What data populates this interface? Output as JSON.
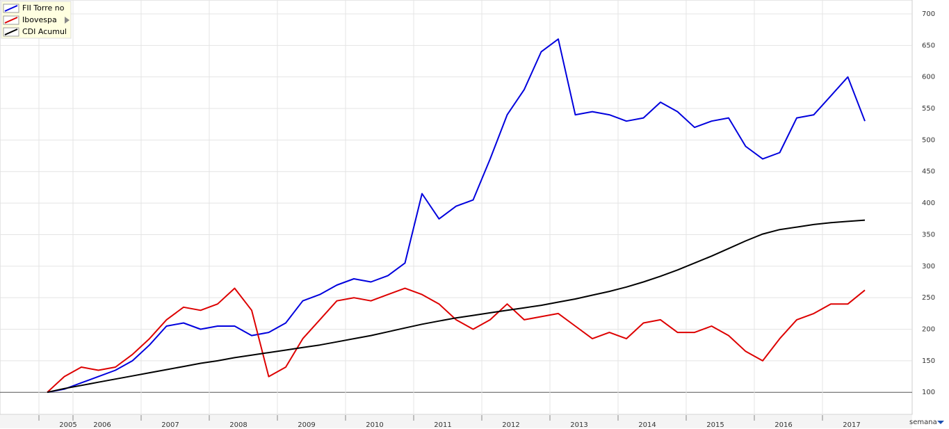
{
  "chart_data": {
    "type": "line",
    "categories": [
      "2005",
      null,
      "2006",
      null,
      null,
      null,
      "2007",
      null,
      null,
      null,
      "2008",
      null,
      null,
      null,
      "2009",
      null,
      null,
      null,
      "2010",
      null,
      null,
      null,
      "2011",
      null,
      null,
      null,
      "2012",
      null,
      null,
      null,
      "2013",
      null,
      null,
      null,
      "2014",
      null,
      null,
      null,
      "2015",
      null,
      null,
      null,
      "2016",
      null,
      null,
      null,
      "2017",
      null,
      null
    ],
    "series": [
      {
        "name": "FII Torre no",
        "color": "#0000dd",
        "values": [
          100,
          105,
          115,
          125,
          135,
          150,
          175,
          205,
          210,
          200,
          205,
          205,
          190,
          195,
          210,
          245,
          255,
          270,
          280,
          275,
          285,
          305,
          415,
          375,
          395,
          405,
          470,
          540,
          580,
          640,
          660,
          540,
          545,
          540,
          530,
          535,
          560,
          545,
          520,
          530,
          535,
          490,
          470,
          480,
          535,
          540,
          570,
          600,
          530
        ]
      },
      {
        "name": "Ibovespa",
        "color": "#dd0000",
        "values": [
          100,
          125,
          140,
          135,
          140,
          160,
          185,
          215,
          235,
          230,
          240,
          265,
          230,
          125,
          140,
          185,
          215,
          245,
          250,
          245,
          255,
          265,
          255,
          240,
          215,
          200,
          215,
          240,
          215,
          220,
          225,
          205,
          185,
          195,
          185,
          210,
          215,
          195,
          195,
          205,
          190,
          165,
          150,
          185,
          215,
          225,
          240,
          240,
          262
        ]
      },
      {
        "name": "CDI Acumul",
        "color": "#000000",
        "values": [
          100,
          106,
          111,
          116,
          121,
          126,
          131,
          136,
          141,
          146,
          150,
          155,
          159,
          163,
          167,
          171,
          175,
          180,
          185,
          190,
          196,
          202,
          208,
          213,
          218,
          222,
          226,
          230,
          234,
          238,
          243,
          248,
          254,
          260,
          267,
          275,
          284,
          294,
          305,
          316,
          328,
          340,
          351,
          358,
          362,
          366,
          369,
          371,
          373
        ]
      }
    ],
    "ylim": [
      65,
      722
    ],
    "yticks": [
      100,
      150,
      200,
      250,
      300,
      350,
      400,
      450,
      500,
      550,
      600,
      650,
      700
    ],
    "grid": true,
    "legend": "top-left",
    "period": "semana"
  }
}
